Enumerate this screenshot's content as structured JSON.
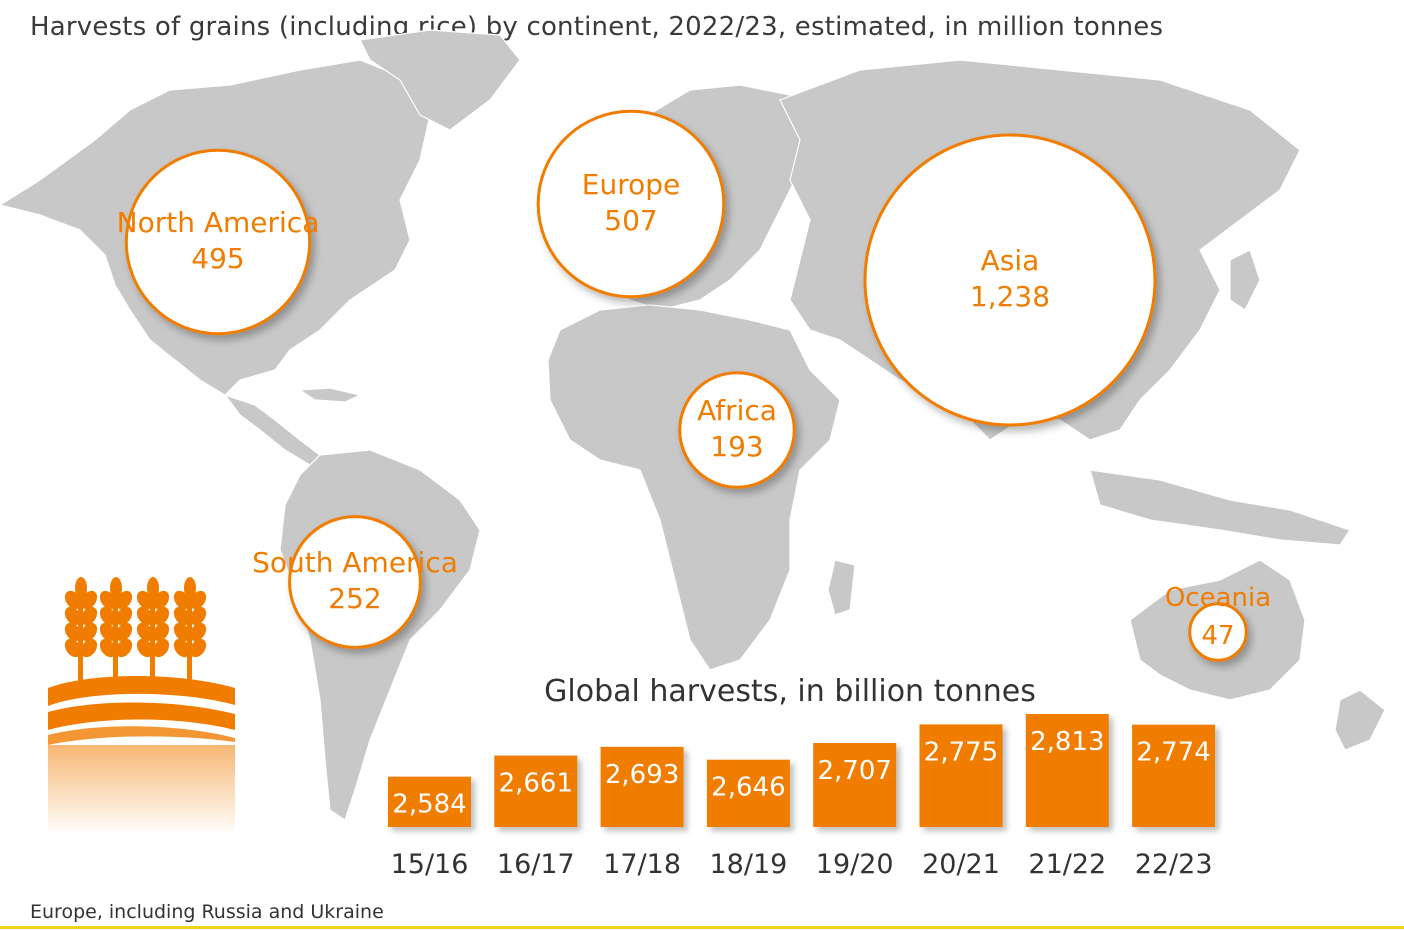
{
  "title": "Harvests of grains (including rice) by continent, 2022/23, estimated, in million tonnes",
  "footnote": "Europe, including Russia and Ukraine",
  "colors": {
    "accent": "#f07c00",
    "map": "#c8c8c8",
    "map_border": "#ffffff",
    "text": "#3a3a3a"
  },
  "icon": "wheat-icon",
  "chart_data": [
    {
      "type": "bubble",
      "title": "Harvests of grains (including rice) by continent, 2022/23, estimated, in million tonnes",
      "unit": "million tonnes",
      "items": [
        {
          "label": "North America",
          "value": 495,
          "display": "495"
        },
        {
          "label": "Europe",
          "value": 507,
          "display": "507"
        },
        {
          "label": "Asia",
          "value": 1238,
          "display": "1,238"
        },
        {
          "label": "Africa",
          "value": 193,
          "display": "193"
        },
        {
          "label": "South America",
          "value": 252,
          "display": "252"
        },
        {
          "label": "Oceania",
          "value": 47,
          "display": "47"
        }
      ]
    },
    {
      "type": "bar",
      "title": "Global harvests, in billion tonnes",
      "categories": [
        "15/16",
        "16/17",
        "17/18",
        "18/19",
        "19/20",
        "20/21",
        "21/22",
        "22/23"
      ],
      "values": [
        2584,
        2661,
        2693,
        2646,
        2707,
        2775,
        2813,
        2774
      ],
      "labels": [
        "2,584",
        "2,661",
        "2,693",
        "2,646",
        "2,707",
        "2,775",
        "2,813",
        "2,774"
      ]
    }
  ]
}
